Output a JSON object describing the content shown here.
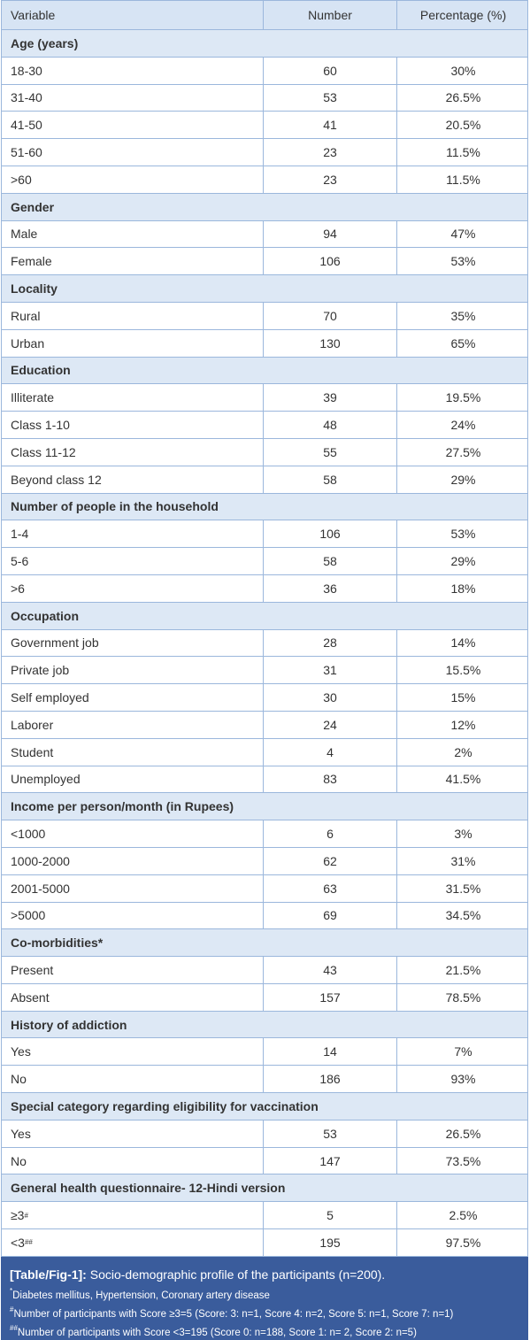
{
  "header": [
    "Variable",
    "Number",
    "Percentage (%)"
  ],
  "sections": [
    {
      "title": "Age (years)",
      "rows": [
        {
          "label": "18-30",
          "number": 60,
          "percentage": "30%"
        },
        {
          "label": "31-40",
          "number": 53,
          "percentage": "26.5%"
        },
        {
          "label": "41-50",
          "number": 41,
          "percentage": "20.5%"
        },
        {
          "label": "51-60",
          "number": 23,
          "percentage": "11.5%"
        },
        {
          "label": ">60",
          "number": 23,
          "percentage": "11.5%"
        }
      ]
    },
    {
      "title": "Gender",
      "rows": [
        {
          "label": "Male",
          "number": 94,
          "percentage": "47%"
        },
        {
          "label": "Female",
          "number": 106,
          "percentage": "53%"
        }
      ]
    },
    {
      "title": "Locality",
      "rows": [
        {
          "label": "Rural",
          "number": 70,
          "percentage": "35%"
        },
        {
          "label": "Urban",
          "number": 130,
          "percentage": "65%"
        }
      ]
    },
    {
      "title": "Education",
      "rows": [
        {
          "label": "Illiterate",
          "number": 39,
          "percentage": "19.5%"
        },
        {
          "label": "Class 1-10",
          "number": 48,
          "percentage": "24%"
        },
        {
          "label": "Class 11-12",
          "number": 55,
          "percentage": "27.5%"
        },
        {
          "label": "Beyond class 12",
          "number": 58,
          "percentage": "29%"
        }
      ]
    },
    {
      "title": "Number of people in the household",
      "rows": [
        {
          "label": "1-4",
          "number": 106,
          "percentage": "53%"
        },
        {
          "label": "5-6",
          "number": 58,
          "percentage": "29%"
        },
        {
          "label": ">6",
          "number": 36,
          "percentage": "18%"
        }
      ]
    },
    {
      "title": "Occupation",
      "rows": [
        {
          "label": "Government job",
          "number": 28,
          "percentage": "14%"
        },
        {
          "label": "Private job",
          "number": 31,
          "percentage": "15.5%"
        },
        {
          "label": "Self employed",
          "number": 30,
          "percentage": "15%"
        },
        {
          "label": "Laborer",
          "number": 24,
          "percentage": "12%"
        },
        {
          "label": "Student",
          "number": 4,
          "percentage": "2%"
        },
        {
          "label": "Unemployed",
          "number": 83,
          "percentage": "41.5%"
        }
      ]
    },
    {
      "title": "Income per person/month (in Rupees)",
      "rows": [
        {
          "label": "<1000",
          "number": 6,
          "percentage": "3%"
        },
        {
          "label": "1000-2000",
          "number": 62,
          "percentage": "31%"
        },
        {
          "label": "2001-5000",
          "number": 63,
          "percentage": "31.5%"
        },
        {
          "label": ">5000",
          "number": 69,
          "percentage": "34.5%"
        }
      ]
    },
    {
      "title": "Co-morbidities*",
      "rows": [
        {
          "label": "Present",
          "number": 43,
          "percentage": "21.5%"
        },
        {
          "label": "Absent",
          "number": 157,
          "percentage": "78.5%"
        }
      ]
    },
    {
      "title": "History of addiction",
      "rows": [
        {
          "label": "Yes",
          "number": 14,
          "percentage": "7%"
        },
        {
          "label": "No",
          "number": 186,
          "percentage": "93%"
        }
      ]
    },
    {
      "title": "Special category regarding eligibility for vaccination",
      "rows": [
        {
          "label": "Yes",
          "number": 53,
          "percentage": "26.5%"
        },
        {
          "label": "No",
          "number": 147,
          "percentage": "73.5%"
        }
      ]
    },
    {
      "title": "General health questionnaire- 12-Hindi version",
      "rows": [
        {
          "label": "≥3",
          "sup": "#",
          "number": 5,
          "percentage": "2.5%"
        },
        {
          "label": "<3",
          "sup": "##",
          "number": 195,
          "percentage": "97.5%"
        }
      ]
    }
  ],
  "caption": {
    "label": "[Table/Fig-1]:",
    "text": "Socio-demographic profile of the participants (n=200).",
    "footnotes": [
      {
        "sup": "*",
        "text": "Diabetes mellitus, Hypertension, Coronary artery disease"
      },
      {
        "sup": "#",
        "text": "Number of participants with Score ≥3=5 (Score: 3: n=1, Score 4: n=2, Score 5: n=1, Score 7: n=1)"
      },
      {
        "sup": "##",
        "text": "Number of participants with Score <3=195 (Score 0: n=188, Score 1: n= 2, Score 2: n=5)"
      }
    ]
  }
}
